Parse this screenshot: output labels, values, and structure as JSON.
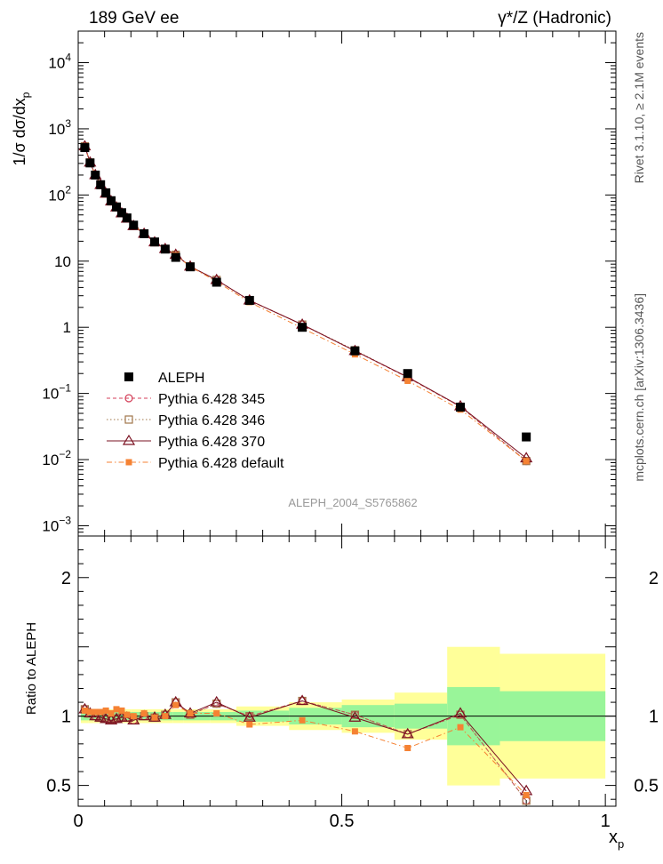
{
  "header": {
    "left": "189 GeV ee",
    "right": "γ*/Z (Hadronic)"
  },
  "side_label_rivet": "Rivet 3.1.10, ≥ 2.1M events",
  "side_label_mcplots": "mcplots.cern.ch [arXiv:1306.3436]",
  "watermark": "ALEPH_2004_S5765862",
  "colors": {
    "data": "#000000",
    "p345": "#d43f59",
    "p346": "#a0764a",
    "p370": "#7a1020",
    "pdefault": "#f58233",
    "band_inner": "#99f599",
    "band_outer": "#ffff99"
  },
  "chart_data": [
    {
      "type": "scatter",
      "ylabel": "1/σ dσ/dx_p",
      "ylabel_main": "1/σ dσ/dx",
      "ylabel_sub": "p",
      "yscale": "log",
      "xlim": [
        0,
        1.02
      ],
      "ylim": [
        0.0007,
        30000
      ],
      "yticks": [
        {
          "value": 0.001,
          "base": "10",
          "exp": "−3"
        },
        {
          "value": 0.01,
          "base": "10",
          "exp": "−2"
        },
        {
          "value": 0.1,
          "base": "10",
          "exp": "−1"
        },
        {
          "value": 1,
          "base": "1",
          "exp": ""
        },
        {
          "value": 10,
          "base": "10",
          "exp": ""
        },
        {
          "value": 100,
          "base": "10",
          "exp": "2"
        },
        {
          "value": 1000,
          "base": "10",
          "exp": "3"
        },
        {
          "value": 10000,
          "base": "10",
          "exp": "4"
        }
      ],
      "x": [
        0.0125,
        0.0225,
        0.0325,
        0.0425,
        0.0525,
        0.0625,
        0.0725,
        0.0825,
        0.0925,
        0.105,
        0.125,
        0.145,
        0.165,
        0.185,
        0.2125,
        0.2625,
        0.325,
        0.425,
        0.525,
        0.625,
        0.725,
        0.85
      ],
      "legend_placement": "lower-left",
      "series": [
        {
          "name": "ALEPH",
          "marker": "filled-square",
          "values": [
            520,
            305,
            200,
            143,
            108,
            82,
            66,
            54,
            45,
            35,
            26,
            19.5,
            15.2,
            11.4,
            8.2,
            4.8,
            2.55,
            1.0,
            0.44,
            0.2,
            0.062,
            0.022
          ]
        },
        {
          "name": "Pythia 6.428 345",
          "marker": "open-circle",
          "line": "dashed",
          "values": [
            545,
            310,
            200,
            142,
            105,
            80,
            65,
            53,
            44,
            34,
            26,
            19.3,
            15.3,
            12.5,
            8.3,
            5.2,
            2.55,
            1.1,
            0.44,
            0.174,
            0.063,
            0.0095
          ]
        },
        {
          "name": "Pythia 6.428 346",
          "marker": "open-square",
          "line": "dotted",
          "values": [
            545,
            310,
            200,
            142,
            105,
            80,
            65,
            53,
            44,
            34,
            26,
            19.3,
            15.3,
            12.5,
            8.3,
            5.2,
            2.55,
            1.1,
            0.45,
            0.175,
            0.063,
            0.0095
          ]
        },
        {
          "name": "Pythia 6.428 370",
          "marker": "open-triangle",
          "line": "solid",
          "values": [
            545,
            310,
            200,
            142,
            105,
            80,
            65,
            53,
            44,
            34,
            26,
            19.3,
            15.3,
            12.5,
            8.3,
            5.2,
            2.55,
            1.1,
            0.44,
            0.177,
            0.064,
            0.0105
          ]
        },
        {
          "name": "Pythia 6.428 default",
          "marker": "filled-square-small",
          "line": "dash-dot",
          "values": [
            540,
            310,
            205,
            147,
            112,
            82,
            69,
            56,
            46,
            35,
            26,
            19.2,
            15.2,
            12.3,
            8.3,
            4.9,
            2.4,
            0.97,
            0.39,
            0.155,
            0.057,
            0.0095
          ]
        }
      ]
    },
    {
      "type": "line",
      "ylabel": "Ratio to ALEPH",
      "xlabel": "x_p",
      "xlabel_main": "x",
      "xlabel_sub": "p",
      "xlim": [
        0,
        1.02
      ],
      "ylim": [
        0.35,
        2.3
      ],
      "xticks": [
        {
          "value": 0,
          "label": "0"
        },
        {
          "value": 0.5,
          "label": "0.5"
        },
        {
          "value": 1,
          "label": "1"
        }
      ],
      "yticks": [
        {
          "value": 0.5,
          "label": "0.5"
        },
        {
          "value": 1,
          "label": "1"
        },
        {
          "value": 2,
          "label": "2"
        }
      ],
      "reference_line": 1,
      "bands": {
        "bin_edges": [
          0.005,
          0.02,
          0.03,
          0.04,
          0.05,
          0.06,
          0.07,
          0.08,
          0.09,
          0.1,
          0.12,
          0.14,
          0.16,
          0.18,
          0.2,
          0.25,
          0.3,
          0.4,
          0.5,
          0.6,
          0.7,
          0.8,
          1.0
        ],
        "inner": [
          0.03,
          0.03,
          0.03,
          0.03,
          0.03,
          0.03,
          0.03,
          0.03,
          0.03,
          0.03,
          0.03,
          0.03,
          0.03,
          0.03,
          0.03,
          0.03,
          0.04,
          0.06,
          0.08,
          0.09,
          0.21,
          0.18
        ],
        "outer": [
          0.05,
          0.05,
          0.05,
          0.05,
          0.05,
          0.05,
          0.05,
          0.05,
          0.05,
          0.05,
          0.05,
          0.05,
          0.05,
          0.05,
          0.05,
          0.05,
          0.07,
          0.1,
          0.12,
          0.17,
          0.5,
          0.45
        ]
      },
      "x": [
        0.0125,
        0.0225,
        0.0325,
        0.0425,
        0.0525,
        0.0625,
        0.0725,
        0.0825,
        0.0925,
        0.105,
        0.125,
        0.145,
        0.165,
        0.185,
        0.2125,
        0.2625,
        0.325,
        0.425,
        0.525,
        0.625,
        0.725,
        0.85
      ],
      "series": [
        {
          "name": "Pythia 6.428 345",
          "values": [
            1.05,
            1.02,
            1.0,
            0.99,
            0.98,
            0.97,
            0.98,
            0.99,
            0.99,
            0.97,
            1.0,
            0.99,
            1.01,
            1.1,
            1.01,
            1.09,
            1.0,
            1.11,
            1.01,
            0.87,
            1.01,
            0.39
          ]
        },
        {
          "name": "Pythia 6.428 346",
          "values": [
            1.05,
            1.02,
            1.0,
            0.99,
            0.98,
            0.97,
            0.98,
            0.99,
            0.99,
            0.97,
            1.0,
            0.99,
            1.01,
            1.1,
            1.01,
            1.09,
            1.0,
            1.11,
            1.01,
            0.87,
            1.01,
            0.39
          ]
        },
        {
          "name": "Pythia 6.428 370",
          "values": [
            1.05,
            1.02,
            1.0,
            0.99,
            0.98,
            0.97,
            0.98,
            0.99,
            0.99,
            0.97,
            1.0,
            0.99,
            1.01,
            1.1,
            1.02,
            1.1,
            0.99,
            1.11,
            0.99,
            0.87,
            1.02,
            0.46
          ]
        },
        {
          "name": "Pythia 6.428 default",
          "values": [
            1.04,
            1.03,
            1.03,
            1.03,
            1.04,
            1.02,
            1.05,
            1.04,
            1.01,
            1.0,
            1.02,
            0.99,
            1.0,
            1.08,
            1.02,
            1.02,
            0.94,
            0.97,
            0.89,
            0.77,
            0.92,
            0.43
          ]
        }
      ]
    }
  ]
}
